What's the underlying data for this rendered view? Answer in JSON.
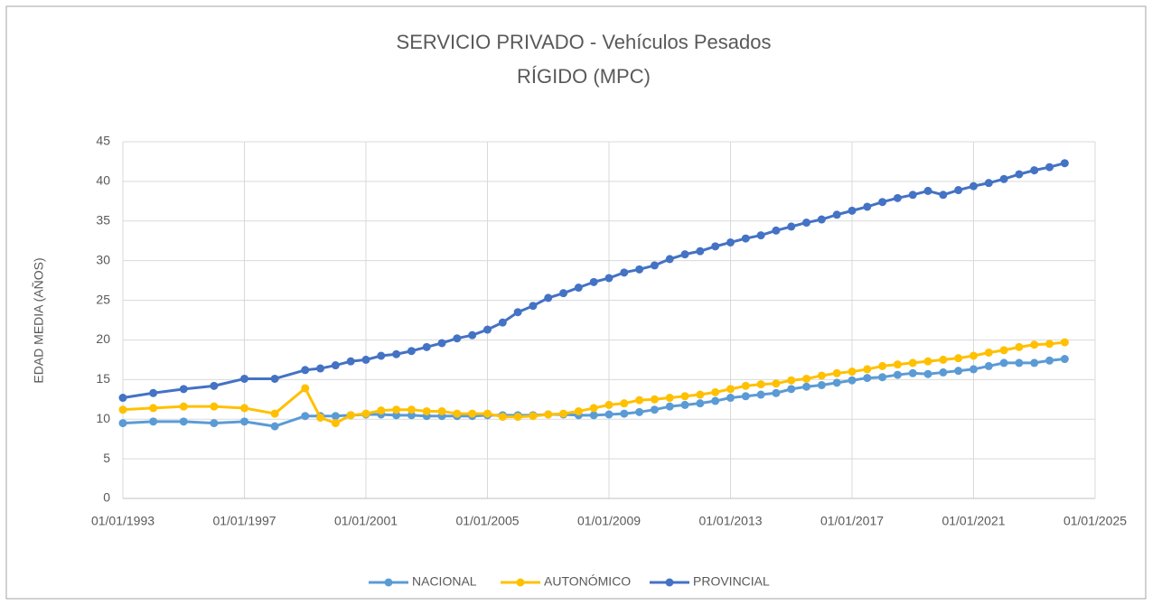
{
  "chart_data": {
    "type": "line",
    "title": "SERVICIO PRIVADO - Vehículos Pesados",
    "subtitle": "RÍGIDO (MPC)",
    "y_label": "EDAD MEDIA (AÑOS)",
    "x": [
      1993,
      1994,
      1995,
      1996,
      1997,
      1998,
      1999,
      1999.5,
      2000,
      2000.5,
      2001,
      2001.5,
      2002,
      2002.5,
      2003,
      2003.5,
      2004,
      2004.5,
      2005,
      2005.5,
      2006,
      2006.5,
      2007,
      2007.5,
      2008,
      2008.5,
      2009,
      2009.5,
      2010,
      2010.5,
      2011,
      2011.5,
      2012,
      2012.5,
      2013,
      2013.5,
      2014,
      2014.5,
      2015,
      2015.5,
      2016,
      2016.5,
      2017,
      2017.5,
      2018,
      2018.5,
      2019,
      2019.5,
      2020,
      2020.5,
      2021,
      2021.5,
      2022,
      2022.5,
      2023,
      2023.5,
      2024
    ],
    "series": [
      {
        "name": "NACIONAL",
        "color": "#5b9bd5",
        "values": [
          9.5,
          9.7,
          9.7,
          9.5,
          9.7,
          9.1,
          10.4,
          10.4,
          10.4,
          10.5,
          10.6,
          10.6,
          10.5,
          10.5,
          10.4,
          10.4,
          10.4,
          10.4,
          10.5,
          10.5,
          10.5,
          10.5,
          10.6,
          10.6,
          10.5,
          10.5,
          10.6,
          10.7,
          10.9,
          11.2,
          11.6,
          11.8,
          12.0,
          12.3,
          12.7,
          12.9,
          13.1,
          13.3,
          13.8,
          14.1,
          14.3,
          14.6,
          14.9,
          15.2,
          15.3,
          15.6,
          15.8,
          15.7,
          15.9,
          16.1,
          16.3,
          16.7,
          17.1,
          17.1,
          17.1,
          17.4,
          17.6
        ]
      },
      {
        "name": "AUTONÓMICO",
        "color": "#ffc000",
        "values": [
          11.2,
          11.4,
          11.6,
          11.6,
          11.4,
          10.7,
          13.9,
          10.2,
          9.5,
          10.5,
          10.7,
          11.1,
          11.2,
          11.2,
          11.0,
          11.0,
          10.7,
          10.7,
          10.7,
          10.3,
          10.3,
          10.4,
          10.6,
          10.7,
          11.0,
          11.4,
          11.8,
          12.0,
          12.4,
          12.5,
          12.7,
          12.9,
          13.1,
          13.4,
          13.8,
          14.2,
          14.4,
          14.5,
          14.9,
          15.1,
          15.5,
          15.8,
          16.0,
          16.3,
          16.7,
          16.9,
          17.1,
          17.3,
          17.5,
          17.7,
          18.0,
          18.4,
          18.7,
          19.1,
          19.4,
          19.5,
          19.7
        ]
      },
      {
        "name": "PROVINCIAL",
        "color": "#4472c4",
        "values": [
          12.7,
          13.3,
          13.8,
          14.2,
          15.1,
          15.1,
          16.2,
          16.4,
          16.8,
          17.3,
          17.5,
          18.0,
          18.2,
          18.6,
          19.1,
          19.6,
          20.2,
          20.6,
          21.3,
          22.2,
          23.5,
          24.3,
          25.3,
          25.9,
          26.6,
          27.3,
          27.8,
          28.5,
          28.9,
          29.4,
          30.2,
          30.8,
          31.2,
          31.8,
          32.3,
          32.8,
          33.2,
          33.8,
          34.3,
          34.8,
          35.2,
          35.8,
          36.3,
          36.8,
          37.4,
          37.9,
          38.3,
          38.8,
          38.3,
          38.9,
          39.4,
          39.8,
          40.3,
          40.9,
          41.4,
          41.8,
          42.3
        ]
      }
    ],
    "xlim": [
      1993,
      2025
    ],
    "xticks": [
      {
        "value": 1993,
        "label": "01/01/1993"
      },
      {
        "value": 1997,
        "label": "01/01/1997"
      },
      {
        "value": 2001,
        "label": "01/01/2001"
      },
      {
        "value": 2005,
        "label": "01/01/2005"
      },
      {
        "value": 2009,
        "label": "01/01/2009"
      },
      {
        "value": 2013,
        "label": "01/01/2013"
      },
      {
        "value": 2017,
        "label": "01/01/2017"
      },
      {
        "value": 2021,
        "label": "01/01/2021"
      },
      {
        "value": 2025,
        "label": "01/01/2025"
      }
    ],
    "ylim": [
      0,
      45
    ],
    "yticks": [
      0,
      5,
      10,
      15,
      20,
      25,
      30,
      35,
      40,
      45
    ],
    "grid": true,
    "legend": "bottom"
  }
}
